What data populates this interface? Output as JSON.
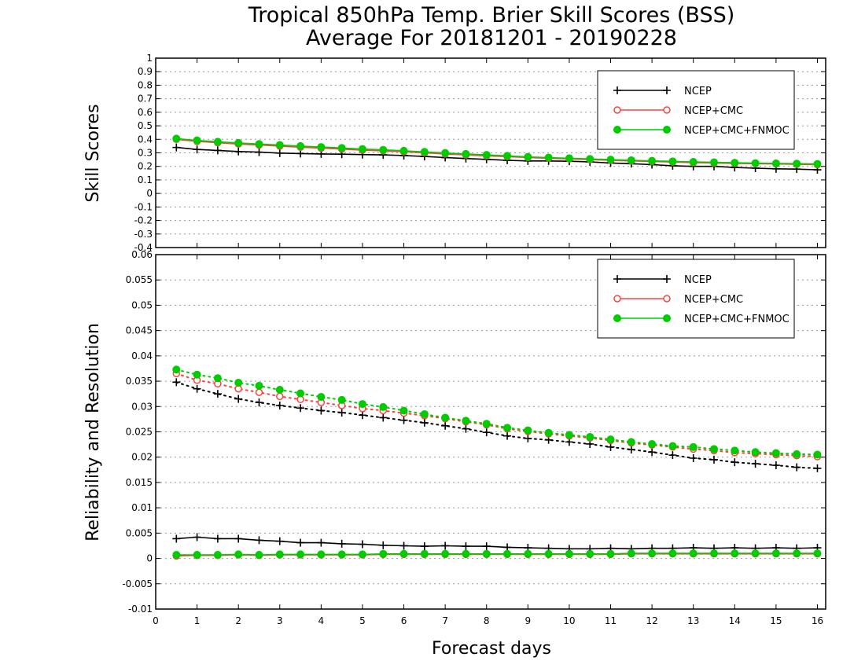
{
  "chart_data": {
    "type": "line",
    "title": "Tropical 850hPa Temp. Brier Skill Scores (BSS)",
    "subtitle": "Average For 20181201 - 20190228",
    "xlabel": "Forecast days",
    "xlim": [
      0,
      16.2
    ],
    "xticks": [
      "0",
      "1",
      "2",
      "3",
      "4",
      "5",
      "6",
      "7",
      "8",
      "9",
      "10",
      "11",
      "12",
      "13",
      "14",
      "15",
      "16"
    ],
    "x": [
      0.5,
      1,
      1.5,
      2,
      2.5,
      3,
      3.5,
      4,
      4.5,
      5,
      5.5,
      6,
      6.5,
      7,
      7.5,
      8,
      8.5,
      9,
      9.5,
      10,
      10.5,
      11,
      11.5,
      12,
      12.5,
      13,
      13.5,
      14,
      14.5,
      15,
      15.5,
      16
    ],
    "colors": {
      "NCEP": "#000000",
      "NCEP+CMC": "#ff4040",
      "NCEP+CMC+FNMOC": "#00cc00"
    },
    "panels": [
      {
        "ylabel": "Skill Scores",
        "ylim": [
          -0.4,
          1
        ],
        "yticks": [
          "1",
          "0.9",
          "0.8",
          "0.7",
          "0.6",
          "0.5",
          "0.4",
          "0.3",
          "0.2",
          "0.1",
          "0",
          "-0.1",
          "-0.2",
          "-0.3",
          "-0.4"
        ],
        "grid": true,
        "legend": "top-right",
        "legend_entries": [
          "NCEP",
          "NCEP+CMC",
          "NCEP+CMC+FNMOC"
        ],
        "series": [
          {
            "name": "NCEP",
            "marker": "plus",
            "line": "solid",
            "values": [
              0.34,
              0.325,
              0.318,
              0.31,
              0.305,
              0.298,
              0.295,
              0.292,
              0.29,
              0.287,
              0.285,
              0.28,
              0.273,
              0.265,
              0.258,
              0.252,
              0.245,
              0.24,
              0.24,
              0.238,
              0.233,
              0.225,
              0.22,
              0.213,
              0.205,
              0.2,
              0.2,
              0.192,
              0.187,
              0.182,
              0.18,
              0.175
            ]
          },
          {
            "name": "NCEP+CMC",
            "marker": "open-circle",
            "line": "solid",
            "values": [
              0.4,
              0.385,
              0.375,
              0.365,
              0.358,
              0.35,
              0.342,
              0.335,
              0.328,
              0.32,
              0.315,
              0.308,
              0.3,
              0.292,
              0.285,
              0.278,
              0.272,
              0.265,
              0.26,
              0.255,
              0.25,
              0.245,
              0.24,
              0.236,
              0.232,
              0.228,
              0.225,
              0.222,
              0.22,
              0.218,
              0.215,
              0.213
            ]
          },
          {
            "name": "NCEP+CMC+FNMOC",
            "marker": "filled-circle",
            "line": "solid",
            "values": [
              0.405,
              0.392,
              0.382,
              0.373,
              0.365,
              0.358,
              0.35,
              0.343,
              0.336,
              0.328,
              0.322,
              0.315,
              0.307,
              0.299,
              0.292,
              0.285,
              0.278,
              0.27,
              0.265,
              0.26,
              0.255,
              0.25,
              0.245,
              0.241,
              0.237,
              0.233,
              0.23,
              0.227,
              0.224,
              0.222,
              0.22,
              0.218
            ]
          }
        ]
      },
      {
        "ylabel": "Reliability and Resolution",
        "ylim": [
          -0.01,
          0.06
        ],
        "yticks": [
          "0.06",
          "0.055",
          "0.05",
          "0.045",
          "0.04",
          "0.035",
          "0.03",
          "0.025",
          "0.02",
          "0.015",
          "0.01",
          "0.005",
          "0",
          "-0.005",
          "-0.01"
        ],
        "grid": true,
        "legend": "top-right",
        "legend_entries": [
          "NCEP",
          "NCEP+CMC",
          "NCEP+CMC+FNMOC"
        ],
        "series": [
          {
            "name": "NCEP",
            "group": "resolution",
            "marker": "plus",
            "line": "dotted",
            "values": [
              0.0348,
              0.0335,
              0.0325,
              0.0315,
              0.0308,
              0.0302,
              0.0297,
              0.0292,
              0.0288,
              0.0283,
              0.0278,
              0.0273,
              0.0268,
              0.0262,
              0.0256,
              0.0249,
              0.0242,
              0.0237,
              0.0234,
              0.023,
              0.0226,
              0.022,
              0.0215,
              0.021,
              0.0204,
              0.0198,
              0.0195,
              0.019,
              0.0187,
              0.0184,
              0.018,
              0.0178
            ]
          },
          {
            "name": "NCEP+CMC",
            "group": "resolution",
            "marker": "open-circle",
            "line": "dotted",
            "values": [
              0.0365,
              0.0352,
              0.0345,
              0.0335,
              0.0328,
              0.032,
              0.0314,
              0.0308,
              0.0302,
              0.0296,
              0.0292,
              0.0287,
              0.0282,
              0.0276,
              0.027,
              0.0264,
              0.0256,
              0.0251,
              0.0246,
              0.0242,
              0.0238,
              0.0233,
              0.0228,
              0.0224,
              0.022,
              0.0216,
              0.0213,
              0.0209,
              0.0207,
              0.0205,
              0.0203,
              0.0201
            ]
          },
          {
            "name": "NCEP+CMC+FNMOC",
            "group": "resolution",
            "marker": "filled-circle",
            "line": "dotted",
            "values": [
              0.0373,
              0.0363,
              0.0356,
              0.0347,
              0.0341,
              0.0333,
              0.0326,
              0.0319,
              0.0313,
              0.0305,
              0.0299,
              0.0292,
              0.0285,
              0.0278,
              0.0272,
              0.0266,
              0.0258,
              0.0253,
              0.0248,
              0.0244,
              0.024,
              0.0235,
              0.023,
              0.0226,
              0.0222,
              0.022,
              0.0216,
              0.0213,
              0.021,
              0.0208,
              0.0206,
              0.0205
            ]
          },
          {
            "name": "NCEP",
            "group": "reliability",
            "marker": "plus",
            "line": "solid",
            "values": [
              0.0039,
              0.0042,
              0.0039,
              0.0039,
              0.0036,
              0.0034,
              0.0031,
              0.0031,
              0.0029,
              0.0028,
              0.0026,
              0.0025,
              0.0024,
              0.0025,
              0.0024,
              0.0024,
              0.0022,
              0.0021,
              0.002,
              0.0019,
              0.0019,
              0.002,
              0.0019,
              0.002,
              0.002,
              0.0021,
              0.002,
              0.0021,
              0.002,
              0.0021,
              0.002,
              0.0021
            ]
          },
          {
            "name": "NCEP+CMC",
            "group": "reliability",
            "marker": "open-circle",
            "line": "solid",
            "values": [
              0.0005,
              0.0006,
              0.0006,
              0.0007,
              0.0006,
              0.0007,
              0.0007,
              0.0007,
              0.0007,
              0.0007,
              0.0008,
              0.0008,
              0.0008,
              0.0008,
              0.0008,
              0.0008,
              0.0008,
              0.0008,
              0.0008,
              0.0008,
              0.0008,
              0.0008,
              0.0009,
              0.0009,
              0.0009,
              0.0009,
              0.0009,
              0.0009,
              0.0009,
              0.0009,
              0.0009,
              0.0009
            ]
          },
          {
            "name": "NCEP+CMC+FNMOC",
            "group": "reliability",
            "marker": "filled-circle",
            "line": "solid",
            "values": [
              0.0007,
              0.0007,
              0.0007,
              0.0008,
              0.0007,
              0.0008,
              0.0008,
              0.0008,
              0.0008,
              0.0008,
              0.0009,
              0.0009,
              0.0009,
              0.0009,
              0.0009,
              0.0009,
              0.0009,
              0.0009,
              0.0009,
              0.0009,
              0.0009,
              0.0009,
              0.001,
              0.001,
              0.001,
              0.001,
              0.001,
              0.001,
              0.001,
              0.001,
              0.001,
              0.001
            ]
          }
        ]
      }
    ]
  }
}
